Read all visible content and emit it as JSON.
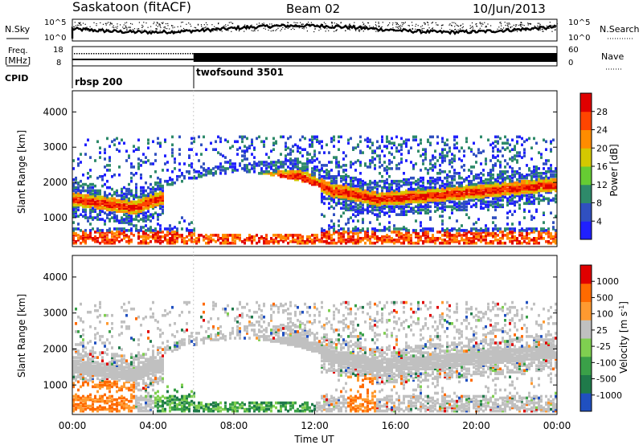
{
  "header": {
    "station": "Saskatoon (fitACF)",
    "beam": "Beam 02",
    "date": "10/Jun/2013"
  },
  "panels": {
    "nsky_label": "N.Sky",
    "nsearch_label": "N.Search",
    "nsky_ticks": [
      "10^5",
      "10^0"
    ],
    "nsearch_ticks": [
      "10^5",
      "10^0"
    ],
    "freq_label_1": "Freq.",
    "freq_label_2": "[MHz]",
    "freq_ticks": [
      "18",
      "8"
    ],
    "nave_label": "Nave",
    "nave_ticks": [
      "60",
      "0"
    ],
    "cpid_label": "CPID",
    "cpid_segments": [
      {
        "name": "rbsp 200",
        "start_hour": 0
      },
      {
        "name": "twofsound 3501",
        "start_hour": 6
      }
    ]
  },
  "chart_data": [
    {
      "type": "heatmap",
      "name": "power",
      "ylabel": "Slant Range [km]",
      "yticks": [
        "1000",
        "2000",
        "3000",
        "4000"
      ],
      "ylim": [
        180,
        4600
      ],
      "colorbar_title": "Power [dB]",
      "colorbar_ticks": [
        "28",
        "24",
        "20",
        "16",
        "12",
        "8",
        "4"
      ],
      "colors": [
        "#2020ff",
        "#3050c0",
        "#2e8a6a",
        "#66cc33",
        "#d4c800",
        "#ff8c00",
        "#ff4500",
        "#e00000"
      ]
    },
    {
      "type": "heatmap",
      "name": "velocity",
      "ylabel": "Slant Range [km]",
      "yticks": [
        "1000",
        "2000",
        "3000",
        "4000"
      ],
      "ylim": [
        180,
        4600
      ],
      "colorbar_title": "Velocity [m s",
      "colorbar_title_sup": "-1",
      "colorbar_title_end": "]",
      "colorbar_ticks": [
        "1000",
        "500",
        "100",
        "25",
        "-25",
        "-100",
        "-500",
        "-1000"
      ],
      "colors": [
        "#2050c0",
        "#1f7a4a",
        "#3aa048",
        "#7fcf50",
        "#c0c0c0",
        "#ff9a30",
        "#ff6a00",
        "#e00000"
      ]
    }
  ],
  "xaxis": {
    "xlabel": "Time UT",
    "ticks": [
      "00:00",
      "04:00",
      "08:00",
      "12:00",
      "16:00",
      "20:00",
      "00:00"
    ]
  }
}
